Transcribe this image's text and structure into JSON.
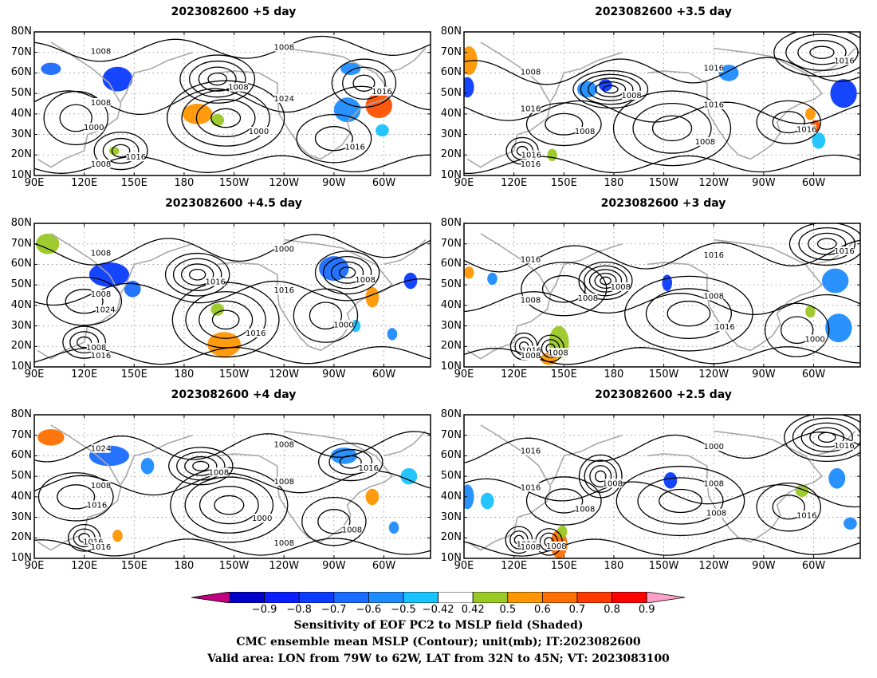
{
  "panels": [
    {
      "title": "2023082600 +5 day",
      "isobars": [
        "1008",
        "1016",
        "1016",
        "1000",
        "1016",
        "1000",
        "1008",
        "1024",
        "1008",
        "1008",
        "1008"
      ],
      "shades": [
        {
          "lon": 100,
          "lat": 62,
          "rx": 6,
          "ry": 3,
          "color": "#1a6bff"
        },
        {
          "lon": 140,
          "lat": 57,
          "rx": 9,
          "ry": 6,
          "color": "#0a3bff"
        },
        {
          "lon": 188,
          "lat": 40,
          "rx": 9,
          "ry": 5,
          "color": "#ff9600"
        },
        {
          "lon": 200,
          "lat": 37,
          "rx": 4,
          "ry": 3,
          "color": "#9ac825"
        },
        {
          "lon": 278,
          "lat": 42,
          "rx": 8,
          "ry": 6,
          "color": "#1e8cff"
        },
        {
          "lon": 297,
          "lat": 44,
          "rx": 8,
          "ry": 6,
          "color": "#ff5000"
        },
        {
          "lon": 280,
          "lat": 62,
          "rx": 6,
          "ry": 3,
          "color": "#1e8cff"
        },
        {
          "lon": 299,
          "lat": 32,
          "rx": 4,
          "ry": 3,
          "color": "#19c3ff"
        },
        {
          "lon": 138,
          "lat": 22,
          "rx": 3,
          "ry": 2,
          "color": "#9ac825"
        }
      ]
    },
    {
      "title": "2023082600 +3.5 day",
      "isobars": [
        "1008",
        "1016",
        "1016",
        "1008",
        "1008",
        "1016",
        "1008",
        "1016",
        "1016",
        "1016",
        "1016"
      ],
      "shades": [
        {
          "lon": 93,
          "lat": 66,
          "rx": 5,
          "ry": 7,
          "color": "#ff9600"
        },
        {
          "lon": 92,
          "lat": 53,
          "rx": 4,
          "ry": 5,
          "color": "#0a3bff"
        },
        {
          "lon": 164,
          "lat": 52,
          "rx": 6,
          "ry": 4,
          "color": "#1e8cff"
        },
        {
          "lon": 175,
          "lat": 54,
          "rx": 4,
          "ry": 3,
          "color": "#0a3bff"
        },
        {
          "lon": 249,
          "lat": 60,
          "rx": 6,
          "ry": 4,
          "color": "#1e8cff"
        },
        {
          "lon": 298,
          "lat": 40,
          "rx": 3,
          "ry": 3,
          "color": "#ff9600"
        },
        {
          "lon": 301,
          "lat": 34,
          "rx": 3,
          "ry": 3,
          "color": "#ff5000"
        },
        {
          "lon": 318,
          "lat": 50,
          "rx": 8,
          "ry": 7,
          "color": "#0a3bff"
        },
        {
          "lon": 143,
          "lat": 20,
          "rx": 3,
          "ry": 3,
          "color": "#9ac825"
        },
        {
          "lon": 303,
          "lat": 27,
          "rx": 4,
          "ry": 4,
          "color": "#19c3ff"
        }
      ]
    },
    {
      "title": "2023082600 +4.5 day",
      "isobars": [
        "1016",
        "1008",
        "1008",
        "1016",
        "1000",
        "1024",
        "1008",
        "1000",
        "1008",
        "1016",
        "1016"
      ],
      "shades": [
        {
          "lon": 98,
          "lat": 70,
          "rx": 7,
          "ry": 5,
          "color": "#9ac825"
        },
        {
          "lon": 135,
          "lat": 55,
          "rx": 12,
          "ry": 6,
          "color": "#0a3bff"
        },
        {
          "lon": 149,
          "lat": 48,
          "rx": 5,
          "ry": 4,
          "color": "#1a6bff"
        },
        {
          "lon": 200,
          "lat": 38,
          "rx": 4,
          "ry": 3,
          "color": "#9ac825"
        },
        {
          "lon": 204,
          "lat": 21,
          "rx": 10,
          "ry": 6,
          "color": "#ff9600"
        },
        {
          "lon": 270,
          "lat": 58,
          "rx": 9,
          "ry": 6,
          "color": "#1a6bff"
        },
        {
          "lon": 293,
          "lat": 44,
          "rx": 4,
          "ry": 5,
          "color": "#ff9600"
        },
        {
          "lon": 316,
          "lat": 52,
          "rx": 4,
          "ry": 4,
          "color": "#0a3bff"
        },
        {
          "lon": 283,
          "lat": 30,
          "rx": 3,
          "ry": 3,
          "color": "#19c3ff"
        },
        {
          "lon": 305,
          "lat": 26,
          "rx": 3,
          "ry": 3,
          "color": "#1e8cff"
        }
      ]
    },
    {
      "title": "2023082600 +3 day",
      "isobars": [
        "1008",
        "1016",
        "1016",
        "1008",
        "1016",
        "1008",
        "1000",
        "1016",
        "1016",
        "1008",
        "1008",
        "1008"
      ],
      "shades": [
        {
          "lon": 93,
          "lat": 56,
          "rx": 3,
          "ry": 3,
          "color": "#ff9600"
        },
        {
          "lon": 107,
          "lat": 53,
          "rx": 3,
          "ry": 3,
          "color": "#1e8cff"
        },
        {
          "lon": 147,
          "lat": 22,
          "rx": 6,
          "ry": 8,
          "color": "#9ac825"
        },
        {
          "lon": 141,
          "lat": 14,
          "rx": 5,
          "ry": 3,
          "color": "#ff9600"
        },
        {
          "lon": 212,
          "lat": 51,
          "rx": 3,
          "ry": 4,
          "color": "#0a3bff"
        },
        {
          "lon": 298,
          "lat": 37,
          "rx": 3,
          "ry": 3,
          "color": "#9ac825"
        },
        {
          "lon": 313,
          "lat": 52,
          "rx": 8,
          "ry": 6,
          "color": "#1e8cff"
        },
        {
          "lon": 315,
          "lat": 29,
          "rx": 8,
          "ry": 7,
          "color": "#1e8cff"
        }
      ]
    },
    {
      "title": "2023082600 +4 day",
      "isobars": [
        "1008",
        "1016",
        "1016",
        "1000",
        "1008",
        "1016",
        "1024",
        "1008",
        "1008",
        "1008",
        "1016",
        "1008"
      ],
      "shades": [
        {
          "lon": 100,
          "lat": 69,
          "rx": 8,
          "ry": 4,
          "color": "#ff6f00"
        },
        {
          "lon": 135,
          "lat": 60,
          "rx": 12,
          "ry": 5,
          "color": "#1a6bff"
        },
        {
          "lon": 158,
          "lat": 55,
          "rx": 4,
          "ry": 4,
          "color": "#1e8cff"
        },
        {
          "lon": 140,
          "lat": 21,
          "rx": 3,
          "ry": 3,
          "color": "#ff9600"
        },
        {
          "lon": 276,
          "lat": 60,
          "rx": 8,
          "ry": 4,
          "color": "#1e8cff"
        },
        {
          "lon": 293,
          "lat": 40,
          "rx": 4,
          "ry": 4,
          "color": "#ff9600"
        },
        {
          "lon": 315,
          "lat": 50,
          "rx": 5,
          "ry": 4,
          "color": "#19c3ff"
        },
        {
          "lon": 306,
          "lat": 25,
          "rx": 3,
          "ry": 3,
          "color": "#1e8cff"
        }
      ]
    },
    {
      "title": "2023082600 +2.5 day",
      "isobars": [
        "1008",
        "1016",
        "1016",
        "1008",
        "1008",
        "1008",
        "1016",
        "1016",
        "1000",
        "1016",
        "1008",
        "1008"
      ],
      "shades": [
        {
          "lon": 92,
          "lat": 40,
          "rx": 4,
          "ry": 6,
          "color": "#1e8cff"
        },
        {
          "lon": 104,
          "lat": 38,
          "rx": 4,
          "ry": 4,
          "color": "#19c3ff"
        },
        {
          "lon": 147,
          "lat": 17,
          "rx": 5,
          "ry": 7,
          "color": "#ff6f00"
        },
        {
          "lon": 149,
          "lat": 23,
          "rx": 3,
          "ry": 3,
          "color": "#9ac825"
        },
        {
          "lon": 214,
          "lat": 48,
          "rx": 4,
          "ry": 4,
          "color": "#0a3bff"
        },
        {
          "lon": 293,
          "lat": 43,
          "rx": 4,
          "ry": 3,
          "color": "#9ac825"
        },
        {
          "lon": 314,
          "lat": 49,
          "rx": 5,
          "ry": 5,
          "color": "#1e8cff"
        },
        {
          "lon": 322,
          "lat": 27,
          "rx": 4,
          "ry": 3,
          "color": "#1e8cff"
        }
      ]
    }
  ],
  "lon_range": [
    90,
    328
  ],
  "lat_range": [
    10,
    80
  ],
  "lon_ticks": [
    {
      "lon": 90,
      "label": "90E"
    },
    {
      "lon": 120,
      "label": "120E"
    },
    {
      "lon": 150,
      "label": "150E"
    },
    {
      "lon": 180,
      "label": "180"
    },
    {
      "lon": 210,
      "label": "150W"
    },
    {
      "lon": 240,
      "label": "120W"
    },
    {
      "lon": 270,
      "label": "90W"
    },
    {
      "lon": 300,
      "label": "60W"
    }
  ],
  "lat_ticks": [
    {
      "lat": 80,
      "label": "80N"
    },
    {
      "lat": 70,
      "label": "70N"
    },
    {
      "lat": 60,
      "label": "60N"
    },
    {
      "lat": 50,
      "label": "50N"
    },
    {
      "lat": 40,
      "label": "40N"
    },
    {
      "lat": 30,
      "label": "30N"
    },
    {
      "lat": 20,
      "label": "20N"
    },
    {
      "lat": 10,
      "label": "10N"
    }
  ],
  "colorbar": {
    "colors": [
      "#c0007f",
      "#0000c8",
      "#0a1eff",
      "#0a3bff",
      "#1a6bff",
      "#1e8cff",
      "#19c3ff",
      "#ffffff",
      "#9ac825",
      "#ff9600",
      "#ff6f00",
      "#ff3a00",
      "#ff0000",
      "#ffa0c8"
    ],
    "labels": [
      "−0.9",
      "−0.8",
      "−0.7",
      "−0.6",
      "−0.5",
      "−0.42",
      "0.42",
      "0.5",
      "0.6",
      "0.7",
      "0.8",
      "0.9"
    ]
  },
  "caption": {
    "line1": "Sensitivity of EOF PC2 to MSLP field (Shaded)",
    "line2": "CMC ensemble mean MSLP (Contour); unit(mb); IT:2023082600",
    "line3": "Valid area: LON from 79W to 62W, LAT from 32N to 45N; VT: 2023083100"
  }
}
